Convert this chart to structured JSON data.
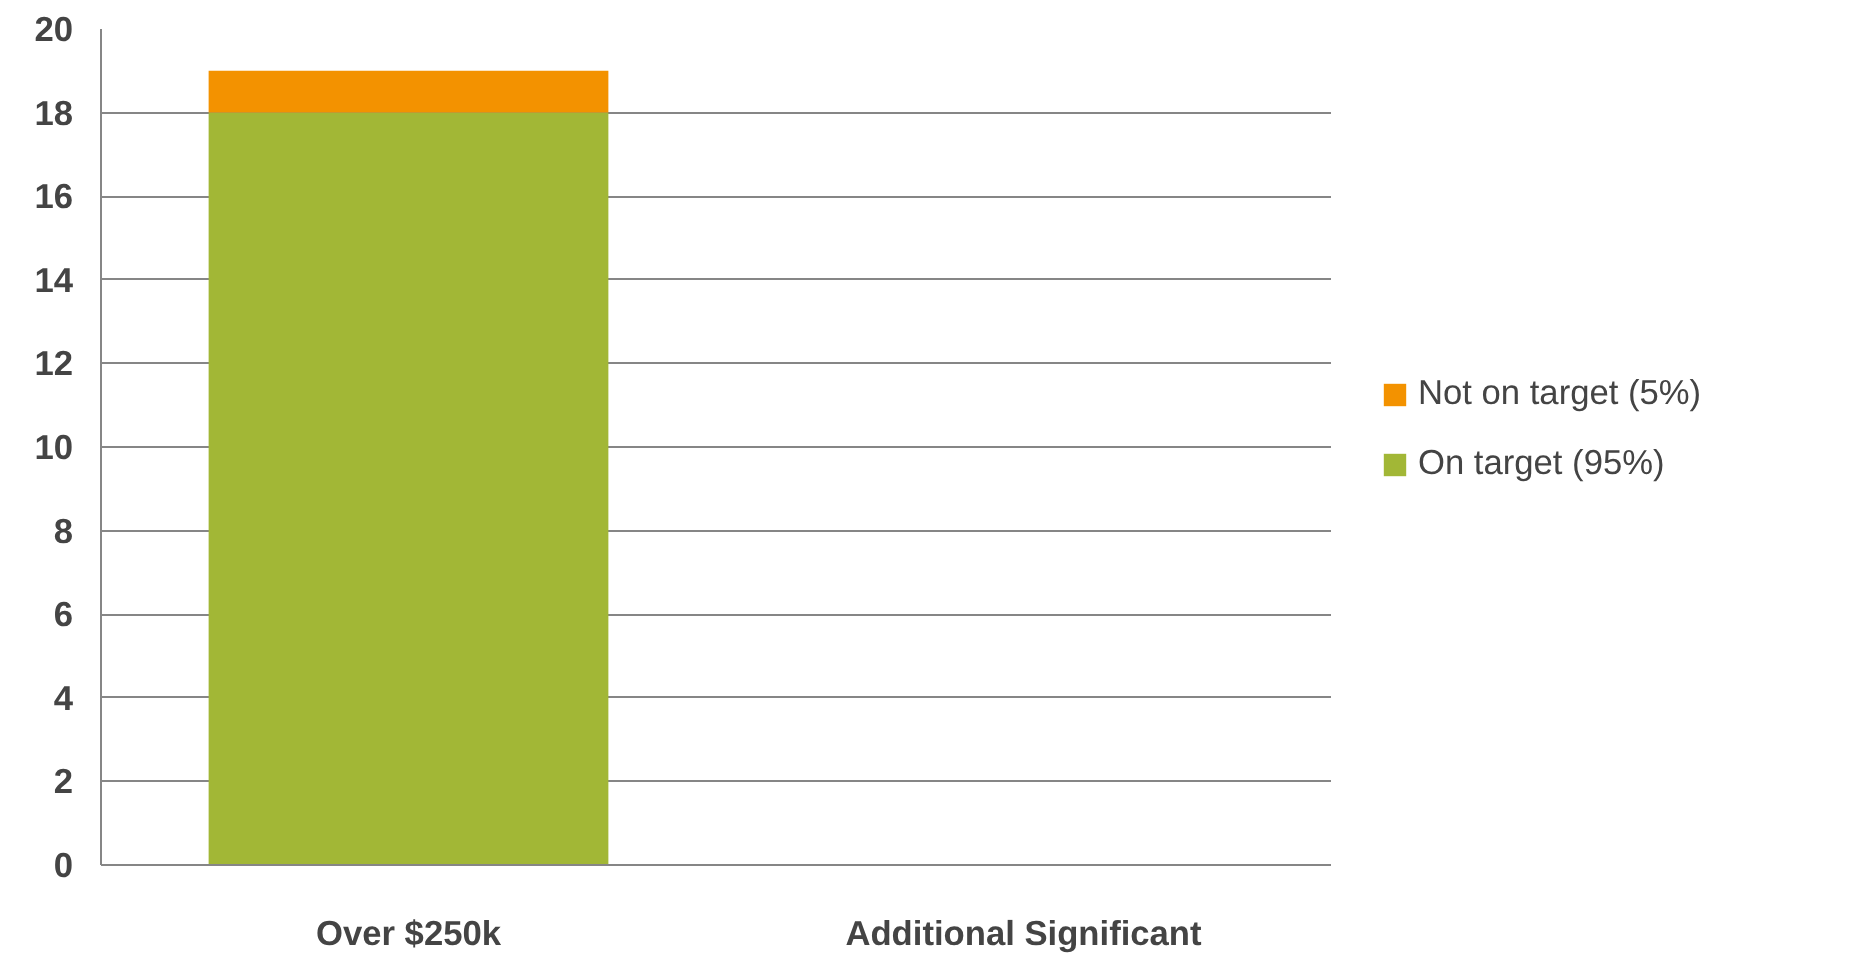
{
  "chart_data": {
    "type": "bar",
    "stacked": true,
    "categories": [
      "Over $250k",
      "Additional Significant"
    ],
    "series": [
      {
        "name": "On target (95%)",
        "color": "#a2b736",
        "values": [
          18,
          0
        ]
      },
      {
        "name": "Not on target (5%)",
        "color": "#f39200",
        "values": [
          1,
          0
        ]
      }
    ],
    "ylim": [
      0,
      20
    ],
    "yticks": [
      0,
      2,
      4,
      6,
      8,
      10,
      12,
      14,
      16,
      18,
      20
    ],
    "grid": "y",
    "legend": "right"
  }
}
